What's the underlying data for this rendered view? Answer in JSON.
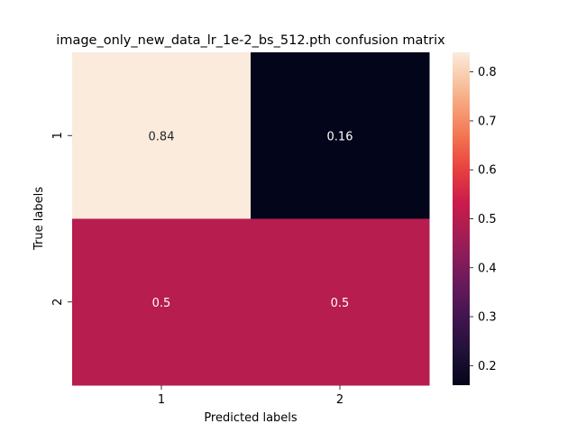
{
  "chart_data": {
    "type": "heatmap",
    "title": "image_only_new_data_lr_1e-2_bs_512.pth confusion matrix",
    "xlabel": "Predicted labels",
    "ylabel": "True labels",
    "x_categories": [
      "1",
      "2"
    ],
    "y_categories": [
      "1",
      "2"
    ],
    "values": [
      [
        0.84,
        0.16
      ],
      [
        0.5,
        0.5
      ]
    ],
    "cell_labels": [
      [
        "0.84",
        "0.16"
      ],
      [
        "0.5",
        "0.5"
      ]
    ],
    "colorbar": {
      "vmin": 0.16,
      "vmax": 0.84,
      "ticks": [
        0.2,
        0.3,
        0.4,
        0.5,
        0.6,
        0.7,
        0.8
      ],
      "tick_labels": [
        "0.2",
        "0.3",
        "0.4",
        "0.5",
        "0.6",
        "0.7",
        "0.8"
      ],
      "colormap": "rocket"
    },
    "grid": false
  }
}
